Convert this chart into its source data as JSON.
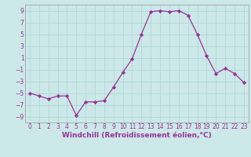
{
  "x": [
    0,
    1,
    2,
    3,
    4,
    5,
    6,
    7,
    8,
    9,
    10,
    11,
    12,
    13,
    14,
    15,
    16,
    17,
    18,
    19,
    20,
    21,
    22,
    23
  ],
  "y": [
    -5,
    -5.5,
    -6,
    -5.5,
    -5.5,
    -8.8,
    -6.5,
    -6.5,
    -6.3,
    -4,
    -1.5,
    0.8,
    5,
    8.8,
    9,
    8.8,
    9,
    8.2,
    5,
    1.3,
    -1.7,
    -0.8,
    -1.7,
    -3.2
  ],
  "line_color": "#993399",
  "marker": "D",
  "marker_size": 2.2,
  "linewidth": 0.9,
  "xlabel": "Windchill (Refroidissement éolien,°C)",
  "xlabel_fontsize": 6.5,
  "ylim": [
    -10,
    10
  ],
  "xlim": [
    -0.5,
    23.5
  ],
  "yticks": [
    -9,
    -7,
    -5,
    -3,
    -1,
    1,
    3,
    5,
    7,
    9
  ],
  "xticks": [
    0,
    1,
    2,
    3,
    4,
    5,
    6,
    7,
    8,
    9,
    10,
    11,
    12,
    13,
    14,
    15,
    16,
    17,
    18,
    19,
    20,
    21,
    22,
    23
  ],
  "grid_color": "#b0d8d8",
  "bg_color": "#cce8e8",
  "tick_fontsize": 5.5,
  "spine_color": "#999999"
}
